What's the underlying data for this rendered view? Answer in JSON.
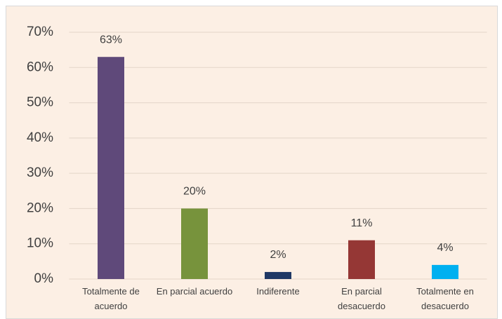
{
  "chart_data": {
    "type": "bar",
    "categories": [
      "Totalmente de acuerdo",
      "En parcial acuerdo",
      "Indiferente",
      "En parcial desacuerdo",
      "Totalmente en desacuerdo"
    ],
    "values": [
      63,
      20,
      2,
      11,
      4
    ],
    "value_labels": [
      "63%",
      "20%",
      "2%",
      "11%",
      "4%"
    ],
    "colors": [
      "#5f497a",
      "#77933c",
      "#1f3864",
      "#953735",
      "#00b0f0"
    ],
    "ylim": [
      0,
      70
    ],
    "yticks": [
      {
        "value": 0,
        "label": "0%"
      },
      {
        "value": 10,
        "label": "10%"
      },
      {
        "value": 20,
        "label": "20%"
      },
      {
        "value": 30,
        "label": "30%"
      },
      {
        "value": 40,
        "label": "40%"
      },
      {
        "value": 50,
        "label": "50%"
      },
      {
        "value": 60,
        "label": "60%"
      },
      {
        "value": 70,
        "label": "70%"
      }
    ],
    "grid": true
  }
}
